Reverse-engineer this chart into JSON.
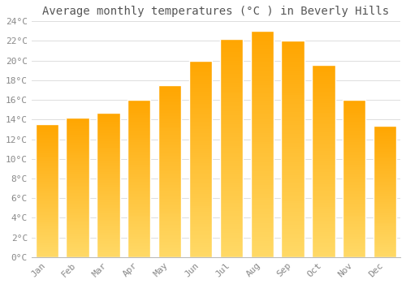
{
  "title": "Average monthly temperatures (°C ) in Beverly Hills",
  "months": [
    "Jan",
    "Feb",
    "Mar",
    "Apr",
    "May",
    "Jun",
    "Jul",
    "Aug",
    "Sep",
    "Oct",
    "Nov",
    "Dec"
  ],
  "values": [
    13.5,
    14.2,
    14.7,
    16.0,
    17.5,
    20.0,
    22.2,
    23.0,
    22.0,
    19.6,
    16.0,
    13.4
  ],
  "bar_color_top": "#FFA500",
  "bar_color_bottom": "#FFD966",
  "bar_edge_color": "#FFFFFF",
  "background_color": "#FFFFFF",
  "grid_color": "#DDDDDD",
  "ylim": [
    0,
    24
  ],
  "ytick_step": 2,
  "title_fontsize": 10,
  "tick_fontsize": 8,
  "tick_label_color": "#888888",
  "title_color": "#555555",
  "bar_width": 0.75
}
